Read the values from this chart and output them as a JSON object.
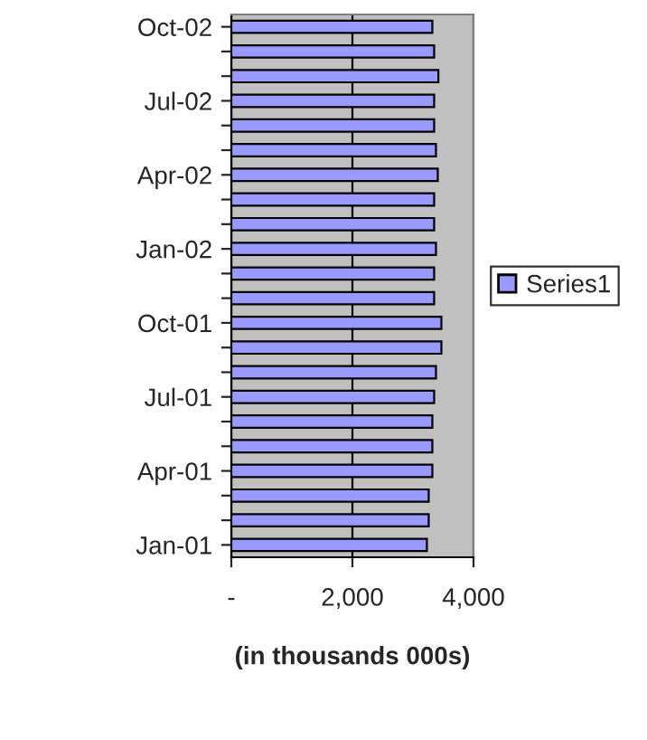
{
  "chart_data": {
    "type": "bar",
    "orientation": "horizontal",
    "xlabel": "(in thousands 000s)",
    "categories": [
      "Oct-02",
      null,
      null,
      "Jul-02",
      null,
      null,
      "Apr-02",
      null,
      null,
      "Jan-02",
      null,
      null,
      "Oct-01",
      null,
      null,
      "Jul-01",
      null,
      null,
      "Apr-01",
      null,
      null,
      "Jan-01"
    ],
    "series": [
      {
        "name": "Series1",
        "color": "#9999ff",
        "values": [
          3320,
          3350,
          3420,
          3350,
          3350,
          3380,
          3410,
          3350,
          3350,
          3380,
          3350,
          3350,
          3470,
          3470,
          3380,
          3350,
          3320,
          3320,
          3320,
          3260,
          3260,
          3230
        ]
      }
    ],
    "xlim": [
      0,
      4000
    ],
    "xticks": [
      {
        "value": 0,
        "label": "-"
      },
      {
        "value": 2000,
        "label": "2,000"
      },
      {
        "value": 4000,
        "label": "4,000"
      }
    ],
    "grid": "x",
    "legend": "right"
  }
}
